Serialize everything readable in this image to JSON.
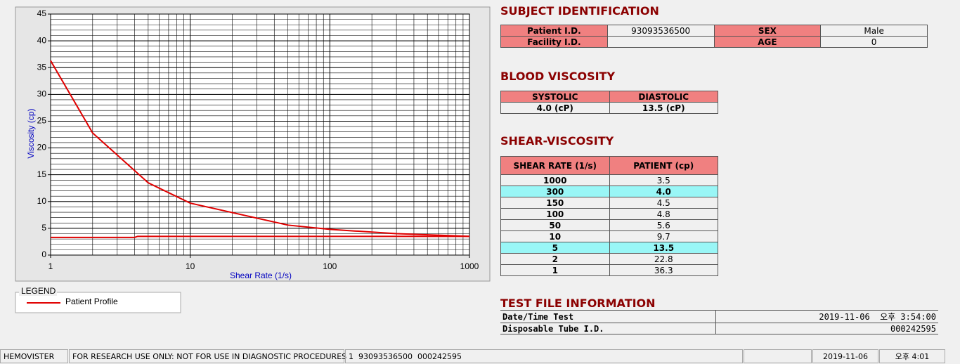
{
  "chart_data": {
    "type": "line",
    "x_label": "Shear Rate (1/s)",
    "y_label": "Viscosity (cp)",
    "xscale": "log",
    "xlim": [
      1,
      1000
    ],
    "xticks": [
      1,
      10,
      100,
      1000
    ],
    "ylim": [
      0,
      45
    ],
    "yticks": [
      0,
      5,
      10,
      15,
      20,
      25,
      30,
      35,
      40,
      45
    ],
    "grid": true,
    "legend_title": "LEGEND",
    "series": [
      {
        "name": "Patient Profile",
        "color": "#e00000",
        "x": [
          1,
          2,
          5,
          10,
          50,
          100,
          150,
          300,
          1000
        ],
        "values": [
          36.3,
          22.8,
          13.5,
          9.7,
          5.6,
          4.8,
          4.5,
          4.0,
          3.5
        ]
      },
      {
        "color": "#e00000",
        "x": [
          1,
          4,
          4.2,
          1000
        ],
        "values": [
          3.3,
          3.3,
          3.5,
          3.5
        ]
      }
    ]
  },
  "subject_identification": {
    "title": "SUBJECT IDENTIFICATION",
    "rows": [
      [
        {
          "label": "Patient I.D.",
          "value": "93093536500"
        },
        {
          "label": "SEX",
          "value": "Male"
        }
      ],
      [
        {
          "label": "Facility I.D."
        },
        {
          "label": "AGE",
          "value": 0
        }
      ]
    ]
  },
  "blood_viscosity": {
    "title": "BLOOD VISCOSITY",
    "columns": [
      "SYSTOLIC",
      "DIASTOLIC"
    ],
    "values": [
      "4.0 (cP)",
      "13.5 (cP)"
    ]
  },
  "shear_viscosity": {
    "title": "SHEAR-VISCOSITY",
    "columns": [
      "SHEAR RATE (1/s)",
      "PATIENT (cp)"
    ],
    "rows": [
      {
        "cells": [
          1000,
          "3.5"
        ]
      },
      {
        "cells": [
          300,
          "4.0"
        ],
        "highlight": true
      },
      {
        "cells": [
          150,
          "4.5"
        ]
      },
      {
        "cells": [
          100,
          "4.8"
        ]
      },
      {
        "cells": [
          50,
          "5.6"
        ]
      },
      {
        "cells": [
          10,
          "9.7"
        ]
      },
      {
        "cells": [
          5,
          "13.5"
        ],
        "highlight": true
      },
      {
        "cells": [
          2,
          "22.8"
        ]
      },
      {
        "cells": [
          1,
          "36.3"
        ]
      }
    ]
  },
  "test_file": {
    "title": "TEST FILE INFORMATION",
    "rows": [
      {
        "label": "Date/Time Test",
        "value": "2019-11-06  오후 3:54:00"
      },
      {
        "label": "Disposable Tube I.D.",
        "value": "000242595"
      }
    ]
  },
  "status_bar": {
    "app": "HEMOVISTER",
    "notice": "FOR RESEARCH USE ONLY: NOT FOR USE IN DIAGNOSTIC PROCEDURES",
    "file": "1  93093536500  000242595",
    "date": "2019-11-06",
    "time": "오후 4:01"
  }
}
